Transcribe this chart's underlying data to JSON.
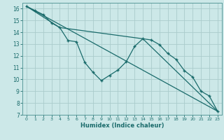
{
  "xlabel": "Humidex (Indice chaleur)",
  "bg_color": "#cce8e8",
  "grid_color": "#aacccc",
  "line_color": "#1a6b6b",
  "xlim": [
    -0.5,
    23.5
  ],
  "ylim": [
    7,
    16.5
  ],
  "yticks": [
    7,
    8,
    9,
    10,
    11,
    12,
    13,
    14,
    15,
    16
  ],
  "xticks": [
    0,
    1,
    2,
    3,
    4,
    5,
    6,
    7,
    8,
    9,
    10,
    11,
    12,
    13,
    14,
    15,
    16,
    17,
    18,
    19,
    20,
    21,
    22,
    23
  ],
  "series1_x": [
    0,
    1,
    2,
    3,
    4,
    5,
    6,
    7,
    8,
    9,
    10,
    11,
    12,
    13,
    14,
    15,
    16,
    17,
    18,
    19,
    20,
    21,
    22,
    23
  ],
  "series1_y": [
    16.2,
    15.85,
    15.5,
    14.8,
    14.4,
    13.3,
    13.2,
    11.45,
    10.6,
    9.9,
    10.35,
    10.8,
    11.5,
    12.8,
    13.45,
    13.35,
    12.95,
    12.2,
    11.7,
    10.75,
    10.2,
    9.0,
    8.6,
    7.3
  ],
  "series2_x": [
    0,
    23
  ],
  "series2_y": [
    16.2,
    7.3
  ],
  "series3_x": [
    0,
    4,
    14,
    23
  ],
  "series3_y": [
    16.2,
    14.4,
    13.45,
    7.3
  ]
}
